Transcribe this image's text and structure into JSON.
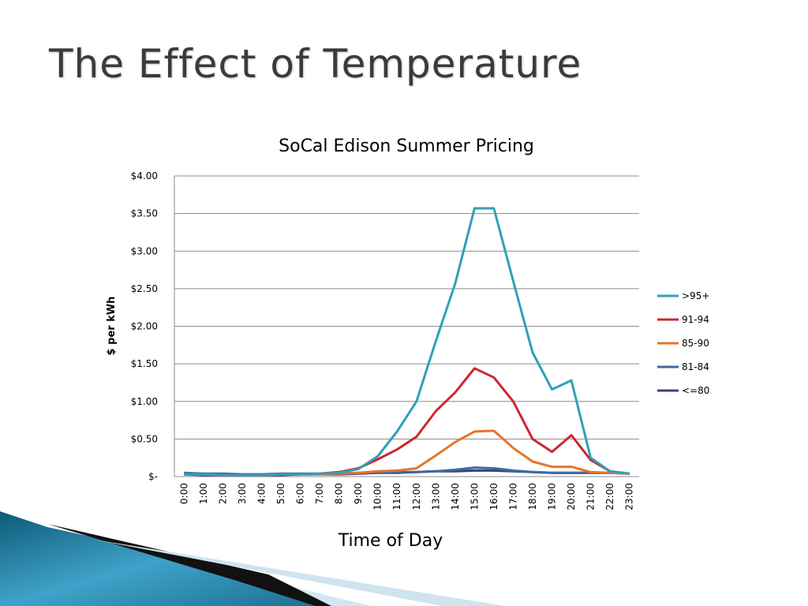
{
  "slide": {
    "title": "The Effect of Temperature"
  },
  "chart_data": {
    "type": "line",
    "title": "SoCal Edison Summer Pricing",
    "xlabel": "Time of Day",
    "ylabel": "$ per kWh",
    "ylim": [
      0,
      4
    ],
    "yticks": [
      0,
      0.5,
      1,
      1.5,
      2,
      2.5,
      3,
      3.5,
      4
    ],
    "ytick_labels": [
      "$-",
      "$0.50",
      "$1.00",
      "$1.50",
      "$2.00",
      "$2.50",
      "$3.00",
      "$3.50",
      "$4.00"
    ],
    "grid": true,
    "legend_position": "right",
    "categories": [
      "0:00",
      "1:00",
      "2:00",
      "3:00",
      "4:00",
      "5:00",
      "6:00",
      "7:00",
      "8:00",
      "9:00",
      "10:00",
      "11:00",
      "12:00",
      "13:00",
      "14:00",
      "15:00",
      "16:00",
      "17:00",
      "18:00",
      "19:00",
      "20:00",
      "21:00",
      "22:00",
      "23:00"
    ],
    "series": [
      {
        "name": ">95+",
        "color": "#31a0b8",
        "values": [
          0.03,
          0.03,
          0.02,
          0.02,
          0.02,
          0.03,
          0.03,
          0.04,
          0.05,
          0.1,
          0.27,
          0.6,
          1.0,
          1.8,
          2.57,
          3.57,
          3.57,
          2.6,
          1.65,
          1.16,
          1.28,
          0.25,
          0.07,
          0.04
        ]
      },
      {
        "name": "91-94",
        "color": "#cc2630",
        "values": [
          0.03,
          0.03,
          0.02,
          0.02,
          0.02,
          0.03,
          0.03,
          0.04,
          0.06,
          0.11,
          0.23,
          0.36,
          0.53,
          0.87,
          1.12,
          1.44,
          1.32,
          1.0,
          0.5,
          0.33,
          0.55,
          0.22,
          0.07,
          0.04
        ]
      },
      {
        "name": "85-90",
        "color": "#e8742a",
        "values": [
          0.03,
          0.03,
          0.02,
          0.02,
          0.02,
          0.03,
          0.03,
          0.03,
          0.04,
          0.05,
          0.07,
          0.08,
          0.11,
          0.28,
          0.46,
          0.6,
          0.61,
          0.38,
          0.2,
          0.13,
          0.13,
          0.06,
          0.05,
          0.04
        ]
      },
      {
        "name": "81-84",
        "color": "#3d6aa0",
        "values": [
          0.05,
          0.04,
          0.04,
          0.03,
          0.03,
          0.04,
          0.04,
          0.04,
          0.04,
          0.05,
          0.05,
          0.06,
          0.06,
          0.07,
          0.09,
          0.12,
          0.11,
          0.08,
          0.06,
          0.05,
          0.05,
          0.05,
          0.05,
          0.04
        ]
      },
      {
        "name": "<=80",
        "color": "#3c3f80",
        "values": [
          0.03,
          0.02,
          0.02,
          0.02,
          0.02,
          0.02,
          0.03,
          0.03,
          0.03,
          0.04,
          0.05,
          0.05,
          0.06,
          0.07,
          0.07,
          0.08,
          0.08,
          0.07,
          0.06,
          0.05,
          0.05,
          0.05,
          0.05,
          0.04
        ]
      }
    ]
  }
}
